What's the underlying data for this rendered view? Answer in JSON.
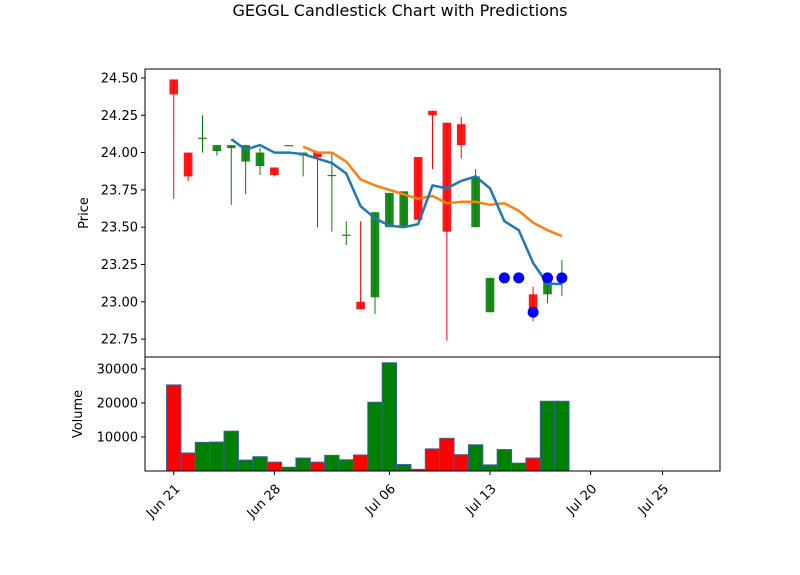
{
  "chart_data": {
    "type": "candlestick",
    "title": "GEGGL Candlestick Chart with Predictions",
    "price_panel": {
      "ylabel": "Price",
      "ylim": [
        22.63,
        24.56
      ],
      "yticks": [
        22.75,
        23.0,
        23.25,
        23.5,
        23.75,
        24.0,
        24.25,
        24.5
      ],
      "ytick_labels": [
        "22.75",
        "23.00",
        "23.25",
        "23.50",
        "23.75",
        "24.00",
        "24.25",
        "24.50"
      ]
    },
    "volume_panel": {
      "ylabel": "Volume",
      "ylim": [
        0,
        33500
      ],
      "yticks": [
        10000,
        20000,
        30000
      ],
      "ytick_labels": [
        "10000",
        "20000",
        "30000"
      ]
    },
    "xlim": [
      "2025-06-19",
      "2025-07-29"
    ],
    "xticks": [
      {
        "date": "2025-06-21",
        "label": "Jun 21"
      },
      {
        "date": "2025-06-28",
        "label": "Jun 28"
      },
      {
        "date": "2025-07-06",
        "label": "Jul 06"
      },
      {
        "date": "2025-07-13",
        "label": "Jul 13"
      },
      {
        "date": "2025-07-20",
        "label": "Jul 20"
      },
      {
        "date": "2025-07-25",
        "label": "Jul 25"
      }
    ],
    "up_color": "#008000",
    "down_color": "#ff0000",
    "candles": [
      {
        "date": "2025-06-21",
        "open": 24.49,
        "high": 24.49,
        "low": 23.69,
        "close": 24.39,
        "volume": 25300
      },
      {
        "date": "2025-06-22",
        "open": 24.0,
        "high": 24.0,
        "low": 23.81,
        "close": 23.84,
        "volume": 5300
      },
      {
        "date": "2025-06-23",
        "open": 24.1,
        "high": 24.25,
        "low": 24.0,
        "close": 24.1,
        "volume": 8400
      },
      {
        "date": "2025-06-24",
        "open": 24.01,
        "high": 24.05,
        "low": 23.98,
        "close": 24.05,
        "volume": 8500
      },
      {
        "date": "2025-06-25",
        "open": 24.03,
        "high": 24.05,
        "low": 23.65,
        "close": 24.05,
        "volume": 11700
      },
      {
        "date": "2025-06-26",
        "open": 23.94,
        "high": 24.05,
        "low": 23.72,
        "close": 24.05,
        "volume": 3200
      },
      {
        "date": "2025-06-27",
        "open": 23.91,
        "high": 24.03,
        "low": 23.85,
        "close": 24.0,
        "volume": 4200
      },
      {
        "date": "2025-06-28",
        "open": 23.9,
        "high": 23.9,
        "low": 23.84,
        "close": 23.85,
        "volume": 2600
      },
      {
        "date": "2025-06-29",
        "open": 24.05,
        "high": 24.05,
        "low": 24.05,
        "close": 24.05,
        "volume": 1100
      },
      {
        "date": "2025-06-30",
        "open": 23.98,
        "high": 24.0,
        "low": 23.84,
        "close": 24.0,
        "volume": 3800
      },
      {
        "date": "2025-07-01",
        "open": 24.0,
        "high": 24.0,
        "low": 23.5,
        "close": 23.97,
        "volume": 2600
      },
      {
        "date": "2025-07-02",
        "open": 23.85,
        "high": 24.0,
        "low": 23.47,
        "close": 23.85,
        "volume": 4600
      },
      {
        "date": "2025-07-03",
        "open": 23.45,
        "high": 23.54,
        "low": 23.38,
        "close": 23.45,
        "volume": 3300
      },
      {
        "date": "2025-07-04",
        "open": 23.0,
        "high": 23.54,
        "low": 22.95,
        "close": 22.95,
        "volume": 4700
      },
      {
        "date": "2025-07-05",
        "open": 23.03,
        "high": 23.6,
        "low": 22.92,
        "close": 23.6,
        "volume": 20200
      },
      {
        "date": "2025-07-06",
        "open": 23.5,
        "high": 23.73,
        "low": 23.5,
        "close": 23.73,
        "volume": 31800
      },
      {
        "date": "2025-07-07",
        "open": 23.5,
        "high": 23.74,
        "low": 23.5,
        "close": 23.74,
        "volume": 1900
      },
      {
        "date": "2025-07-08",
        "open": 23.97,
        "high": 23.97,
        "low": 23.55,
        "close": 23.55,
        "volume": 500
      },
      {
        "date": "2025-07-09",
        "open": 24.28,
        "high": 24.28,
        "low": 23.89,
        "close": 24.25,
        "volume": 6500
      },
      {
        "date": "2025-07-10",
        "open": 24.2,
        "high": 24.2,
        "low": 22.74,
        "close": 23.47,
        "volume": 9600
      },
      {
        "date": "2025-07-11",
        "open": 24.19,
        "high": 24.24,
        "low": 23.96,
        "close": 24.05,
        "volume": 4800
      },
      {
        "date": "2025-07-12",
        "open": 23.5,
        "high": 23.89,
        "low": 23.5,
        "close": 23.84,
        "volume": 7700
      },
      {
        "date": "2025-07-13",
        "open": 22.93,
        "high": 23.16,
        "low": 22.93,
        "close": 23.16,
        "volume": 1800
      },
      {
        "date": "2025-07-14",
        "open": 23.16,
        "high": 23.16,
        "low": 23.16,
        "close": 23.16,
        "volume": 6300
      },
      {
        "date": "2025-07-15",
        "open": 23.16,
        "high": 23.16,
        "low": 23.16,
        "close": 23.16,
        "volume": 2300
      },
      {
        "date": "2025-07-16",
        "open": 23.05,
        "high": 23.1,
        "low": 22.87,
        "close": 22.93,
        "volume": 3800
      },
      {
        "date": "2025-07-17",
        "open": 23.05,
        "high": 23.17,
        "low": 22.99,
        "close": 23.17,
        "volume": 20500
      },
      {
        "date": "2025-07-18",
        "open": 23.16,
        "high": 23.28,
        "low": 23.04,
        "close": 23.16,
        "volume": 20500
      }
    ],
    "ma_short": {
      "color": "#1f77b4",
      "values": [
        {
          "date": "2025-06-25",
          "value": 24.09
        },
        {
          "date": "2025-06-26",
          "value": 24.02
        },
        {
          "date": "2025-06-27",
          "value": 24.05
        },
        {
          "date": "2025-06-28",
          "value": 24.0
        },
        {
          "date": "2025-06-29",
          "value": 24.0
        },
        {
          "date": "2025-06-30",
          "value": 23.99
        },
        {
          "date": "2025-07-01",
          "value": 23.96
        },
        {
          "date": "2025-07-02",
          "value": 23.93
        },
        {
          "date": "2025-07-03",
          "value": 23.86
        },
        {
          "date": "2025-07-04",
          "value": 23.64
        },
        {
          "date": "2025-07-05",
          "value": 23.56
        },
        {
          "date": "2025-07-06",
          "value": 23.51
        },
        {
          "date": "2025-07-07",
          "value": 23.5
        },
        {
          "date": "2025-07-08",
          "value": 23.52
        },
        {
          "date": "2025-07-09",
          "value": 23.78
        },
        {
          "date": "2025-07-10",
          "value": 23.76
        },
        {
          "date": "2025-07-11",
          "value": 23.81
        },
        {
          "date": "2025-07-12",
          "value": 23.84
        },
        {
          "date": "2025-07-13",
          "value": 23.76
        },
        {
          "date": "2025-07-14",
          "value": 23.54
        },
        {
          "date": "2025-07-15",
          "value": 23.48
        },
        {
          "date": "2025-07-16",
          "value": 23.26
        },
        {
          "date": "2025-07-17",
          "value": 23.12
        },
        {
          "date": "2025-07-18",
          "value": 23.12
        }
      ]
    },
    "ma_long": {
      "color": "#ff7f0e",
      "values": [
        {
          "date": "2025-06-30",
          "value": 24.04
        },
        {
          "date": "2025-07-01",
          "value": 24.0
        },
        {
          "date": "2025-07-02",
          "value": 24.0
        },
        {
          "date": "2025-07-03",
          "value": 23.94
        },
        {
          "date": "2025-07-04",
          "value": 23.82
        },
        {
          "date": "2025-07-05",
          "value": 23.78
        },
        {
          "date": "2025-07-06",
          "value": 23.75
        },
        {
          "date": "2025-07-07",
          "value": 23.72
        },
        {
          "date": "2025-07-08",
          "value": 23.69
        },
        {
          "date": "2025-07-09",
          "value": 23.71
        },
        {
          "date": "2025-07-10",
          "value": 23.66
        },
        {
          "date": "2025-07-11",
          "value": 23.67
        },
        {
          "date": "2025-07-12",
          "value": 23.67
        },
        {
          "date": "2025-07-13",
          "value": 23.65
        },
        {
          "date": "2025-07-14",
          "value": 23.66
        },
        {
          "date": "2025-07-15",
          "value": 23.61
        },
        {
          "date": "2025-07-16",
          "value": 23.53
        },
        {
          "date": "2025-07-17",
          "value": 23.48
        },
        {
          "date": "2025-07-18",
          "value": 23.44
        }
      ]
    },
    "predictions": {
      "color": "#0000ff",
      "points": [
        {
          "date": "2025-07-14",
          "value": 23.16
        },
        {
          "date": "2025-07-15",
          "value": 23.16
        },
        {
          "date": "2025-07-16",
          "value": 22.93
        },
        {
          "date": "2025-07-17",
          "value": 23.16
        },
        {
          "date": "2025-07-18",
          "value": 23.16
        }
      ]
    }
  }
}
